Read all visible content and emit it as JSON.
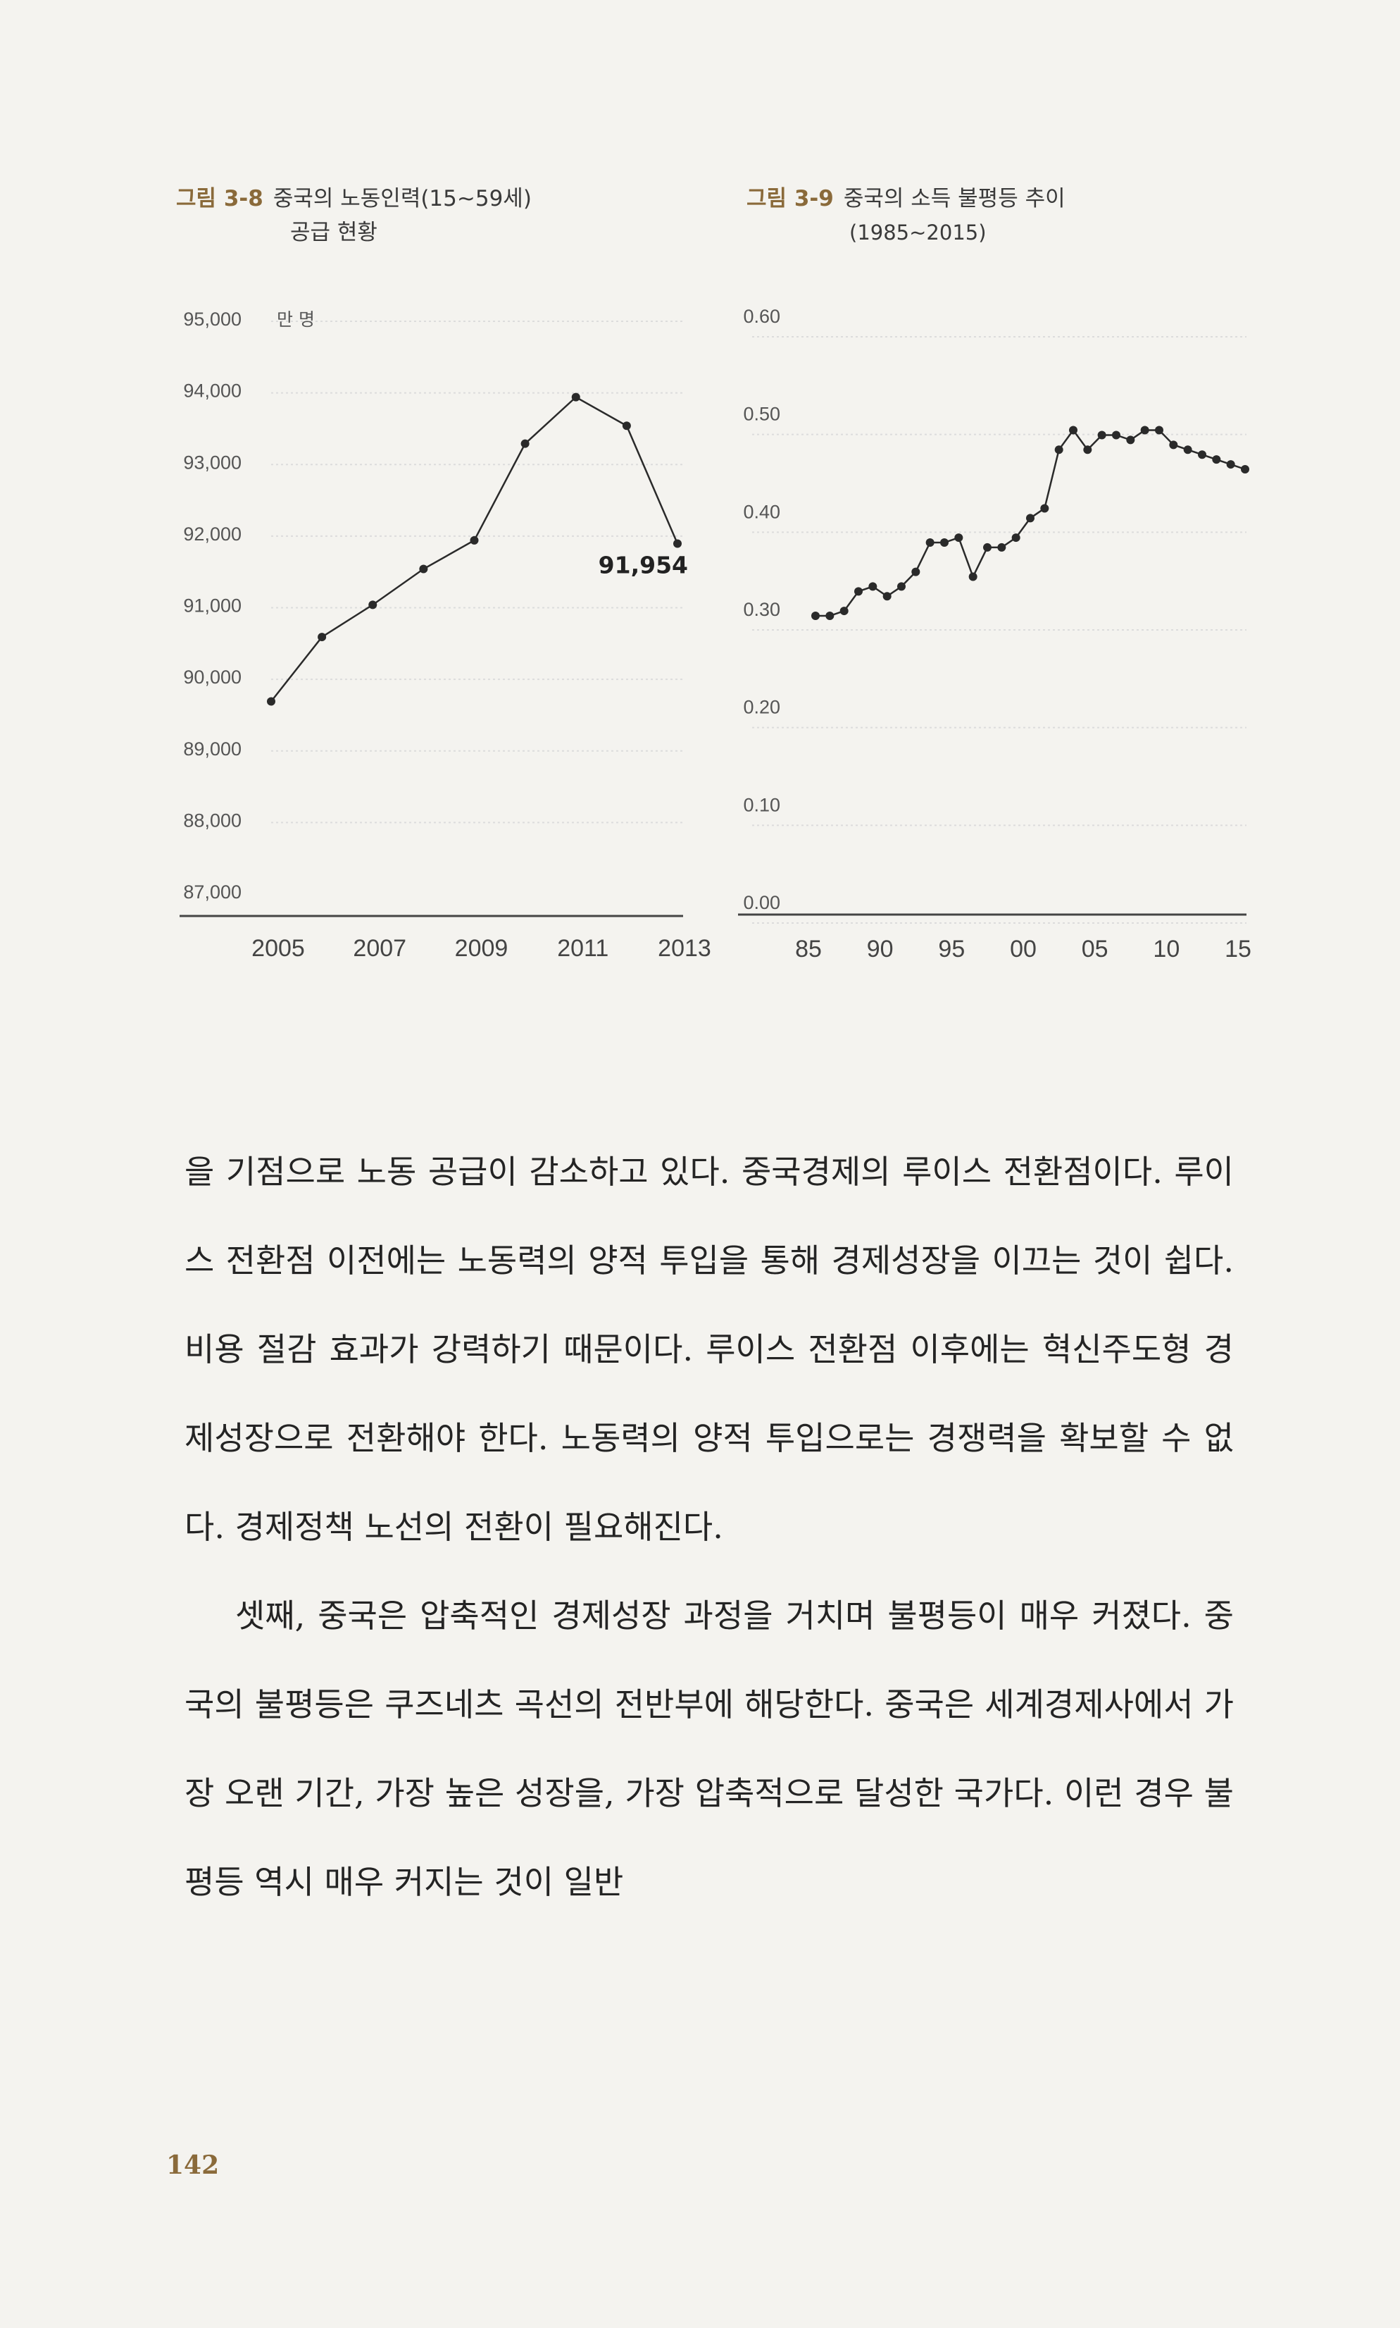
{
  "figures": [
    {
      "number": "그림 3-8",
      "title": "중국의 노동인력(15~59세)",
      "title2": "공급 현황"
    },
    {
      "number": "그림 3-9",
      "title": "중국의 소득 불평등 추이",
      "title2": "(1985~2015)"
    }
  ],
  "chart_data": [
    {
      "type": "line",
      "title": "중국의 노동인력(15~59세) 공급 현황",
      "unit": "만 명",
      "x": [
        2005,
        2006,
        2007,
        2008,
        2009,
        2010,
        2011,
        2012,
        2013
      ],
      "values": [
        89750,
        90650,
        91100,
        91600,
        92000,
        93350,
        94000,
        93600,
        91954
      ],
      "x_ticks": [
        "2005",
        "2007",
        "2009",
        "2011",
        "2013"
      ],
      "y_ticks": [
        "87,000",
        "88,000",
        "89,000",
        "90,000",
        "91,000",
        "92,000",
        "93,000",
        "94,000",
        "95,000"
      ],
      "ylim": [
        87000,
        95000
      ],
      "annotation": "91,954",
      "grid": true
    },
    {
      "type": "line",
      "title": "중국의 소득 불평등 추이 (1985~2015)",
      "x": [
        1985,
        1986,
        1987,
        1988,
        1989,
        1990,
        1991,
        1992,
        1993,
        1994,
        1995,
        1996,
        1997,
        1998,
        1999,
        2000,
        2001,
        2002,
        2003,
        2004,
        2005,
        2006,
        2007,
        2008,
        2009,
        2010,
        2011,
        2012,
        2013,
        2014,
        2015
      ],
      "values": [
        0.3,
        0.3,
        0.305,
        0.325,
        0.33,
        0.32,
        0.33,
        0.345,
        0.375,
        0.375,
        0.38,
        0.34,
        0.37,
        0.37,
        0.38,
        0.4,
        0.41,
        0.47,
        0.49,
        0.47,
        0.485,
        0.485,
        0.48,
        0.49,
        0.49,
        0.475,
        0.47,
        0.465,
        0.46,
        0.455,
        0.45
      ],
      "x_ticks": [
        "85",
        "90",
        "95",
        "00",
        "05",
        "10",
        "15"
      ],
      "y_ticks": [
        "0.00",
        "0.10",
        "0.20",
        "0.30",
        "0.40",
        "0.50",
        "0.60"
      ],
      "ylim": [
        0,
        0.6
      ],
      "grid": true
    }
  ],
  "body": [
    "을 기점으로 노동 공급이 감소하고 있다. 중국경제의 루이스 전환점이다. 루이스 전환점 이전에는 노동력의 양적 투입을 통해 경제성장을 이끄는 것이 쉽다. 비용 절감 효과가 강력하기 때문이다. 루이스 전환점 이후에는 혁신주도형 경제성장으로 전환해야 한다. 노동력의 양적 투입으로는 경쟁력을 확보할 수 없다. 경제정책 노선의 전환이 필요해진다.",
    "셋째, 중국은 압축적인 경제성장 과정을 거치며 불평등이 매우 커졌다. 중국의 불평등은 쿠즈네츠 곡선의 전반부에 해당한다. 중국은 세계경제사에서 가장 오랜 기간, 가장 높은 성장을, 가장 압축적으로 달성한 국가다. 이런 경우 불평등 역시 매우 커지는 것이 일반"
  ],
  "page_number": "142",
  "colors": {
    "accent": "#8a6a3a",
    "line": "#2a2a2a",
    "grid": "#dcdcdc"
  }
}
